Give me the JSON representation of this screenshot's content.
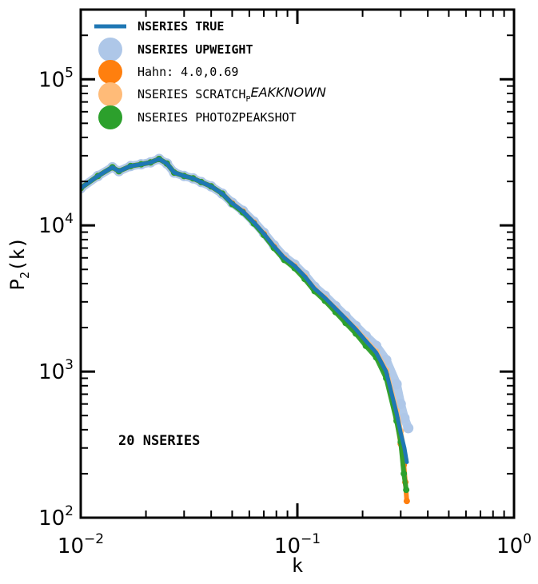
{
  "chart_data": {
    "type": "line",
    "x_scale": "log",
    "y_scale": "log",
    "xlim": [
      0.01,
      1.0
    ],
    "ylim": [
      100,
      300000
    ],
    "xlabel": "k",
    "ylabel": "P",
    "ylabel_sub": "2",
    "ylabel_suffix": "(k)",
    "x_ticks": [
      {
        "value": 0.01,
        "base": "10",
        "exp": "−2"
      },
      {
        "value": 0.1,
        "base": "10",
        "exp": "−1"
      },
      {
        "value": 1.0,
        "base": "10",
        "exp": "0"
      }
    ],
    "y_ticks": [
      {
        "value": 100,
        "base": "10",
        "exp": "2"
      },
      {
        "value": 1000,
        "base": "10",
        "exp": "3"
      },
      {
        "value": 10000,
        "base": "10",
        "exp": "4"
      },
      {
        "value": 100000,
        "base": "10",
        "exp": "5"
      }
    ],
    "annotation": "20 NSERIES",
    "legend_position": "top-left",
    "legend": [
      {
        "label": "NSERIES TRUE",
        "style": "line",
        "bold": true,
        "color": "#1f77b4"
      },
      {
        "label": "NSERIES UPWEIGHT",
        "style": "dot",
        "bold": true,
        "color": "#aec7e8"
      },
      {
        "label": "Hahn:  4.0,0.69",
        "style": "dot",
        "bold": false,
        "color": "#ff7f0e"
      },
      {
        "label": "NSERIES SCRATCH",
        "label_sub": "P",
        "label_italic": "EAKKNOWN",
        "style": "dot",
        "bold": false,
        "color": "#ffbb78"
      },
      {
        "label": "NSERIES PHOTOZPEAKSHOT",
        "style": "dot",
        "bold": false,
        "color": "#2ca02c"
      }
    ],
    "series": [
      {
        "name": "NSERIES TRUE",
        "color": "#1f77b4",
        "x": [
          0.01,
          0.012,
          0.014,
          0.015,
          0.017,
          0.019,
          0.021,
          0.023,
          0.025,
          0.027,
          0.03,
          0.033,
          0.036,
          0.04,
          0.045,
          0.05,
          0.056,
          0.063,
          0.07,
          0.078,
          0.087,
          0.097,
          0.108,
          0.12,
          0.134,
          0.15,
          0.167,
          0.186,
          0.207,
          0.231,
          0.257,
          0.287,
          0.3,
          0.312,
          0.32
        ],
        "y": [
          18000,
          21800,
          25000,
          23500,
          25500,
          26200,
          27000,
          28500,
          26500,
          23000,
          21800,
          21000,
          19800,
          18500,
          16500,
          14200,
          12500,
          10500,
          8800,
          7200,
          6000,
          5300,
          4500,
          3700,
          3200,
          2700,
          2300,
          1950,
          1620,
          1350,
          1000,
          520,
          380,
          300,
          240
        ]
      },
      {
        "name": "NSERIES UPWEIGHT",
        "color": "#aec7e8",
        "x": [
          0.01,
          0.012,
          0.014,
          0.015,
          0.017,
          0.019,
          0.021,
          0.023,
          0.025,
          0.027,
          0.03,
          0.033,
          0.036,
          0.04,
          0.045,
          0.05,
          0.056,
          0.063,
          0.07,
          0.078,
          0.087,
          0.097,
          0.108,
          0.12,
          0.134,
          0.15,
          0.167,
          0.186,
          0.207,
          0.231,
          0.257,
          0.287,
          0.3,
          0.312,
          0.325
        ],
        "y": [
          18000,
          21800,
          25000,
          23500,
          25500,
          26200,
          27000,
          28500,
          26500,
          23000,
          21800,
          21000,
          19800,
          18500,
          16500,
          14300,
          12600,
          10600,
          8900,
          7300,
          6100,
          5400,
          4600,
          3800,
          3300,
          2800,
          2400,
          2050,
          1750,
          1500,
          1200,
          820,
          600,
          480,
          410
        ]
      },
      {
        "name": "Hahn:  4.0,0.69",
        "color": "#ff7f0e",
        "x": [
          0.01,
          0.012,
          0.014,
          0.015,
          0.017,
          0.019,
          0.021,
          0.023,
          0.025,
          0.027,
          0.03,
          0.033,
          0.036,
          0.04,
          0.045,
          0.05,
          0.056,
          0.063,
          0.07,
          0.078,
          0.087,
          0.097,
          0.108,
          0.12,
          0.134,
          0.15,
          0.167,
          0.186,
          0.207,
          0.231,
          0.257,
          0.287,
          0.3,
          0.31,
          0.315,
          0.32
        ],
        "y": [
          18000,
          21800,
          25000,
          23500,
          25500,
          26200,
          27000,
          28500,
          26500,
          23000,
          21800,
          21000,
          19800,
          18500,
          16500,
          14100,
          12400,
          10400,
          8700,
          7100,
          5900,
          5200,
          4400,
          3600,
          3100,
          2600,
          2200,
          1880,
          1560,
          1300,
          950,
          480,
          320,
          230,
          175,
          130
        ]
      },
      {
        "name": "NSERIES SCRATCH_PEAKKNOWN",
        "color": "#ffbb78",
        "x": [
          0.01,
          0.012,
          0.014,
          0.015,
          0.017,
          0.019,
          0.021,
          0.023,
          0.025,
          0.027,
          0.03,
          0.033,
          0.036,
          0.04,
          0.045,
          0.05,
          0.056,
          0.063,
          0.07,
          0.078,
          0.087,
          0.097,
          0.108,
          0.12,
          0.134,
          0.15,
          0.167,
          0.186,
          0.207,
          0.231,
          0.257,
          0.287,
          0.3,
          0.315
        ],
        "y": [
          18000,
          21800,
          25000,
          23500,
          25500,
          26200,
          27000,
          28500,
          26500,
          23000,
          21800,
          21000,
          19800,
          18500,
          16500,
          14200,
          12500,
          10500,
          8800,
          7200,
          6000,
          5300,
          4500,
          3700,
          3200,
          2700,
          2300,
          1960,
          1640,
          1370,
          1020,
          540,
          390,
          250
        ]
      },
      {
        "name": "NSERIES PHOTOZPEAKSHOT",
        "color": "#2ca02c",
        "x": [
          0.01,
          0.012,
          0.014,
          0.015,
          0.017,
          0.019,
          0.021,
          0.023,
          0.025,
          0.027,
          0.03,
          0.033,
          0.036,
          0.04,
          0.045,
          0.05,
          0.056,
          0.063,
          0.07,
          0.078,
          0.087,
          0.097,
          0.108,
          0.12,
          0.134,
          0.15,
          0.167,
          0.186,
          0.207,
          0.231,
          0.257,
          0.287,
          0.3,
          0.31,
          0.318
        ],
        "y": [
          18000,
          21800,
          25000,
          23500,
          25500,
          26200,
          27000,
          28500,
          26500,
          23000,
          21800,
          21000,
          19800,
          18500,
          16500,
          14000,
          12300,
          10300,
          8600,
          7000,
          5800,
          5100,
          4300,
          3550,
          3050,
          2550,
          2150,
          1820,
          1500,
          1250,
          900,
          460,
          330,
          200,
          155
        ]
      }
    ]
  }
}
